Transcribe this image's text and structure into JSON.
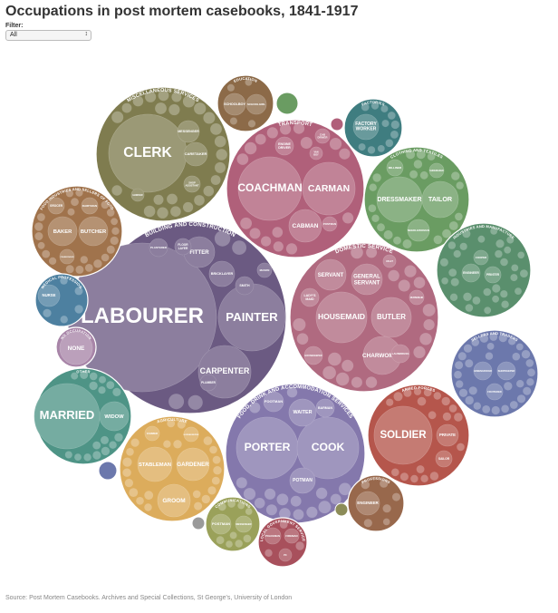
{
  "title": "Occupations in post mortem casebooks, 1841-1917",
  "filter": {
    "label": "Filter:",
    "value": "All"
  },
  "source": "Source: Post Mortem Casebooks. Archives and Special Collections, St George's, University of London",
  "colors": {
    "building": "#6b5a82",
    "domestic": "#b06a80",
    "food": "#8478ac",
    "transport": "#b0607a",
    "misc": "#7f7c4f",
    "clothing": "#6a9c62",
    "industries": "#5a8f6d",
    "sellers": "#6c78ac",
    "armed": "#b5564c",
    "agriculture": "#dcac5c",
    "other": "#4e9486",
    "food_ind": "#a0734c",
    "medical": "#4d80a0",
    "none": "#a885a8",
    "education": "#8c6a48",
    "factories": "#3f7d80",
    "communications": "#9aa15a",
    "local_gov": "#a8505c",
    "professions": "#98684c"
  },
  "chart_data": {
    "type": "packed-bubble",
    "title": "Occupations in post mortem casebooks, 1841-1917",
    "groups": [
      {
        "name": "BUILDING AND CONSTRUCTION",
        "color": "#6b5a82",
        "value": 2000,
        "members": [
          {
            "label": "LABOURER",
            "value": 900
          },
          {
            "label": "PAINTER",
            "value": 200
          },
          {
            "label": "CARPENTER",
            "value": 110
          },
          {
            "label": "FITTER",
            "value": 40
          },
          {
            "label": "BRICKLAYER",
            "value": 28
          },
          {
            "label": "SMITH",
            "value": 16
          },
          {
            "label": "PLASTERER",
            "value": 14
          },
          {
            "label": "PLUMBER",
            "value": 14
          },
          {
            "label": "FLOOR LAYER",
            "value": 12
          },
          {
            "label": "MASON",
            "value": 12
          }
        ]
      },
      {
        "name": "DOMESTIC SERVICE",
        "color": "#b06a80",
        "value": 1200,
        "members": [
          {
            "label": "HOUSEMAID",
            "value": 130
          },
          {
            "label": "BUTLER",
            "value": 90
          },
          {
            "label": "CHARWOMAN",
            "value": 80
          },
          {
            "label": "SERVANT",
            "value": 65
          },
          {
            "label": "GENERAL SERVANT",
            "value": 65
          },
          {
            "label": "LADY'S MAID",
            "value": 22
          },
          {
            "label": "HOUSEKEEPER",
            "value": 22
          },
          {
            "label": "LAUNDRESS",
            "value": 20
          },
          {
            "label": "NURSEMAID",
            "value": 14
          },
          {
            "label": "VALET",
            "value": 10
          }
        ]
      },
      {
        "name": "FOOD, DRINK AND ACCOMMODATION SERVICES",
        "color": "#8478ac",
        "value": 1100,
        "members": [
          {
            "label": "PORTER",
            "value": 170
          },
          {
            "label": "COOK",
            "value": 170
          },
          {
            "label": "WAITER",
            "value": 45
          },
          {
            "label": "POTMAN",
            "value": 40
          },
          {
            "label": "FOOTMAN",
            "value": 28
          },
          {
            "label": "BARMAN",
            "value": 24
          }
        ]
      },
      {
        "name": "TRANSPORT",
        "color": "#b0607a",
        "value": 900,
        "members": [
          {
            "label": "COACHMAN",
            "value": 170
          },
          {
            "label": "CARMAN",
            "value": 140
          },
          {
            "label": "CABMAN",
            "value": 60
          },
          {
            "label": "ENGINE DRIVER",
            "value": 20
          },
          {
            "label": "CAB DRIVER",
            "value": 16
          },
          {
            "label": "POSTMAN",
            "value": 16
          },
          {
            "label": "VAN BOY",
            "value": 14
          }
        ]
      },
      {
        "name": "MISCELLANEOUS SERVICES",
        "color": "#7f7c4f",
        "value": 850,
        "members": [
          {
            "label": "CLERK",
            "value": 280
          },
          {
            "label": "CARETAKER",
            "value": 32
          },
          {
            "label": "MESSENGER",
            "value": 26
          },
          {
            "label": "SHOP ASSISTANT",
            "value": 18
          },
          {
            "label": "HAWKER",
            "value": 14
          }
        ]
      },
      {
        "name": "CLOTHING AND TEXTILES",
        "color": "#6a9c62",
        "value": 500,
        "members": [
          {
            "label": "DRESSMAKER",
            "value": 110
          },
          {
            "label": "TAILOR",
            "value": 85
          },
          {
            "label": "NEEDLEWOMAN",
            "value": 30
          },
          {
            "label": "MILLINER",
            "value": 22
          },
          {
            "label": "SHOEMAKER",
            "value": 20
          }
        ]
      },
      {
        "name": "INDUSTRIES AND MANUFACTURE",
        "color": "#5a8f6d",
        "value": 420,
        "members": [
          {
            "label": "ENGINEER",
            "value": 22
          },
          {
            "label": "PRINTER",
            "value": 20
          },
          {
            "label": "COOPER",
            "value": 18
          }
        ]
      },
      {
        "name": "SELLERS AND TRADERS",
        "color": "#6c78ac",
        "value": 400,
        "members": [
          {
            "label": "GREENGROCER",
            "value": 22
          },
          {
            "label": "SHOPKEEPER",
            "value": 22
          },
          {
            "label": "FRUITERER",
            "value": 18
          }
        ]
      },
      {
        "name": "ARMED FORCES",
        "color": "#b5564c",
        "value": 500,
        "members": [
          {
            "label": "SOLDIER",
            "value": 180
          },
          {
            "label": "PRIVATE",
            "value": 30
          },
          {
            "label": "SAILOR",
            "value": 20
          }
        ]
      },
      {
        "name": "AGRICULTURE",
        "color": "#dcac5c",
        "value": 520,
        "members": [
          {
            "label": "STABLEMAN",
            "value": 75
          },
          {
            "label": "GARDENER",
            "value": 70
          },
          {
            "label": "GROOM",
            "value": 70
          },
          {
            "label": "FARMER",
            "value": 16
          },
          {
            "label": "HORSEKEEPER",
            "value": 16
          }
        ]
      },
      {
        "name": "OTHER",
        "color": "#4e9486",
        "value": 470,
        "members": [
          {
            "label": "MARRIED",
            "value": 200
          },
          {
            "label": "WIDOW",
            "value": 60
          }
        ]
      },
      {
        "name": "FOOD INDUSTRIES AND SELLERS OF FOOD",
        "color": "#a0734c",
        "value": 400,
        "members": [
          {
            "label": "BAKER",
            "value": 60
          },
          {
            "label": "BUTCHER",
            "value": 60
          },
          {
            "label": "GROCER",
            "value": 22
          },
          {
            "label": "DAIRYMAN",
            "value": 20
          },
          {
            "label": "FISHMONGER",
            "value": 16
          }
        ]
      },
      {
        "name": "MEDICAL PROFESSION",
        "color": "#4d80a0",
        "value": 130,
        "members": [
          {
            "label": "NURSE",
            "value": 30
          }
        ]
      },
      {
        "name": "NO OCCUPATION",
        "color": "#a885a8",
        "value": 80,
        "members": [
          {
            "label": "NONE",
            "value": 80
          }
        ]
      },
      {
        "name": "EDUCATION",
        "color": "#8c6a48",
        "value": 150,
        "members": [
          {
            "label": "SCHOOLBOY",
            "value": 30
          },
          {
            "label": "SCHOOLGIRL",
            "value": 28
          }
        ]
      },
      {
        "name": "FACTORIES",
        "color": "#3f7d80",
        "value": 160,
        "members": [
          {
            "label": "FACTORY WORKER",
            "value": 40
          }
        ]
      },
      {
        "name": "COMMUNICATIONS",
        "color": "#9aa15a",
        "value": 130,
        "members": [
          {
            "label": "POSTMAN",
            "value": 26
          },
          {
            "label": "MESSENGER",
            "value": 20
          }
        ]
      },
      {
        "name": "LOCAL GOVERNMENT SERVICE",
        "color": "#a8505c",
        "value": 110,
        "members": [
          {
            "label": "POLICEMAN",
            "value": 24
          },
          {
            "label": "FIREMAN",
            "value": 20
          },
          {
            "label": "PC",
            "value": 16
          }
        ]
      },
      {
        "name": "PROFESSIONS",
        "color": "#98684c",
        "value": 140,
        "members": [
          {
            "label": "ENGINEER",
            "value": 26
          }
        ]
      }
    ]
  }
}
